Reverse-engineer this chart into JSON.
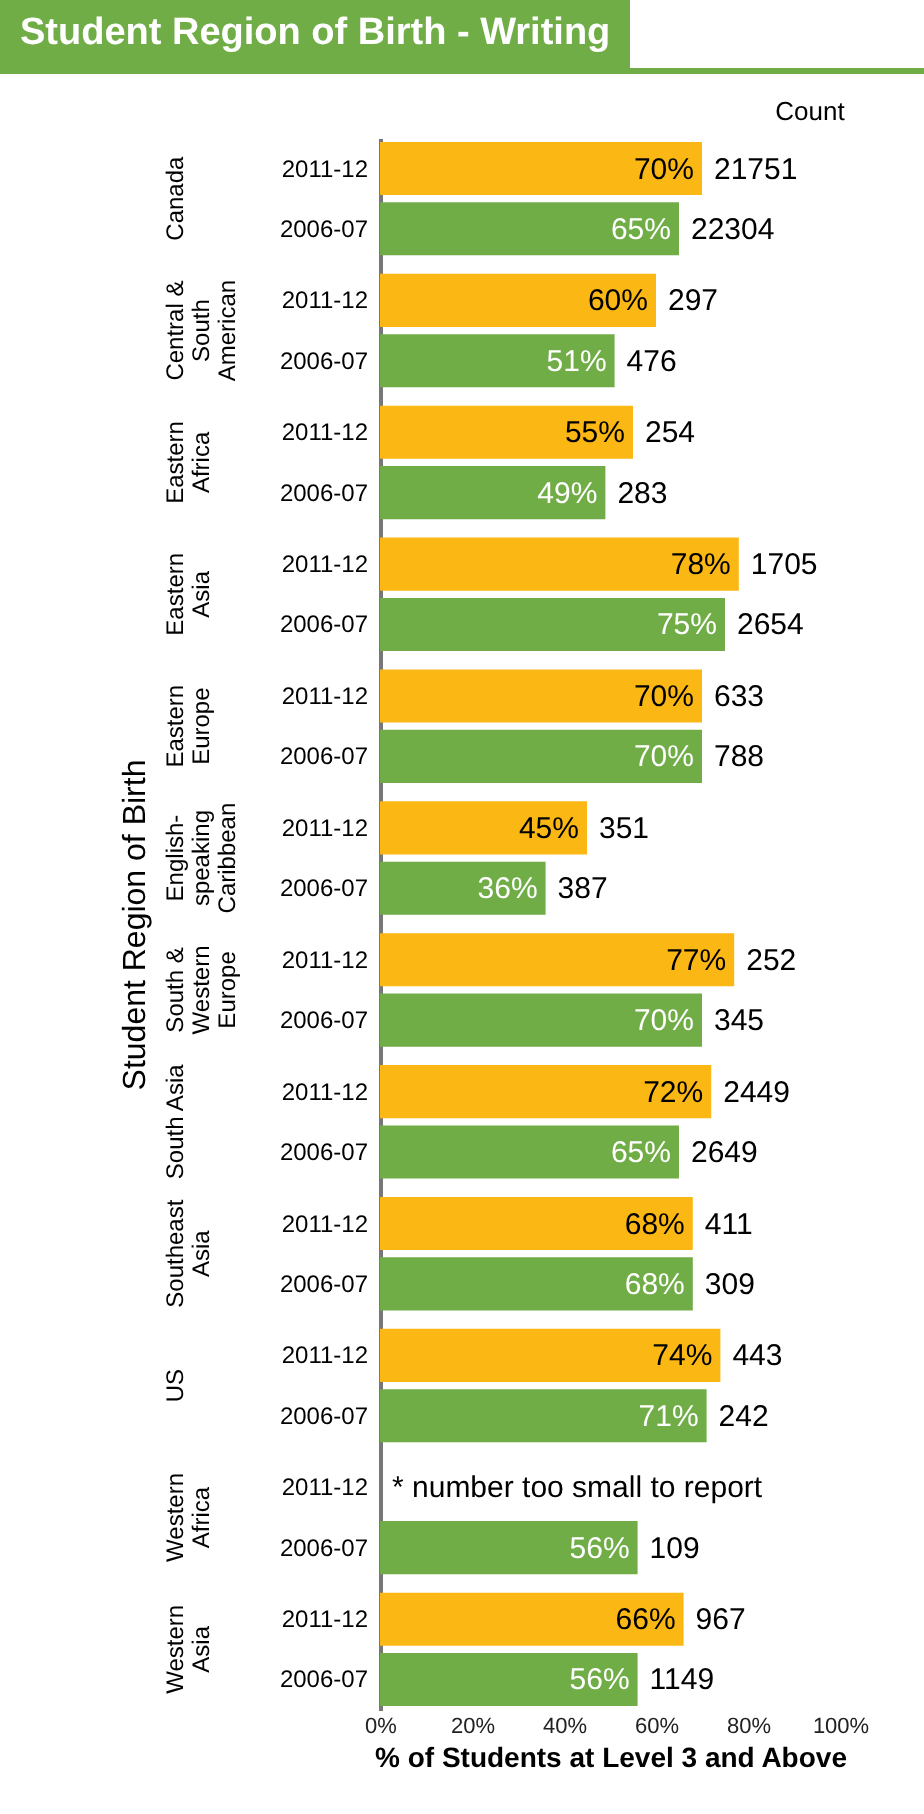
{
  "chart_data": {
    "type": "bar",
    "orientation": "horizontal",
    "title": "Student Region of Birth - Writing",
    "xlabel": "% of Students at Level 3 and Above",
    "ylabel": "Student Region of Birth",
    "categories": [
      "Canada",
      "Central & South American",
      "Eastern Africa",
      "Eastern Asia",
      "Eastern Europe",
      "English-speaking Caribbean",
      "South & Western Europe",
      "South Asia",
      "Southeast Asia",
      "US",
      "Western Africa",
      "Western Asia"
    ],
    "series": [
      {
        "name": "2011-12",
        "color": "#fbb714",
        "values": [
          70,
          60,
          55,
          78,
          70,
          45,
          77,
          72,
          68,
          74,
          null,
          66
        ],
        "value_labels": [
          "70%",
          "60%",
          "55%",
          "78%",
          "70%",
          "45%",
          "77%",
          "72%",
          "68%",
          "74%",
          null,
          "66%"
        ]
      },
      {
        "name": "2006-07",
        "color": "#70ad47",
        "values": [
          65,
          51,
          49,
          75,
          70,
          36,
          70,
          65,
          68,
          71,
          56,
          56
        ],
        "value_labels": [
          "65%",
          "51%",
          "49%",
          "75%",
          "70%",
          "36%",
          "70%",
          "65%",
          "68%",
          "71%",
          "56%",
          "56%"
        ]
      }
    ],
    "xlim": [
      0,
      100
    ],
    "xticks": [
      {
        "value": 0,
        "label": "0%"
      },
      {
        "value": 20,
        "label": "20%"
      },
      {
        "value": 40,
        "label": "40%"
      },
      {
        "value": 60,
        "label": "60%"
      },
      {
        "value": 80,
        "label": "80%"
      },
      {
        "value": 100,
        "label": "100%"
      }
    ],
    "annotations": [
      "Count",
      {
        "text": "21751",
        "x": 70,
        "y": "Canada"
      },
      {
        "text": "22304",
        "x": 65,
        "y": "Canada"
      },
      {
        "text": "297",
        "x": 60,
        "y": "Central & South American"
      },
      {
        "text": "476",
        "x": 51,
        "y": "Central & South American"
      },
      {
        "text": "254",
        "x": 55,
        "y": "Eastern Africa"
      },
      {
        "text": "283",
        "x": 49,
        "y": "Eastern Africa"
      },
      {
        "text": "1705",
        "x": 78,
        "y": "Eastern Asia"
      },
      {
        "text": "2654",
        "x": 75,
        "y": "Eastern Asia"
      },
      {
        "text": "633",
        "x": 70,
        "y": "Eastern Europe"
      },
      {
        "text": "788",
        "x": 70,
        "y": "Eastern Europe"
      },
      {
        "text": "351",
        "x": 45,
        "y": "English-speaking Caribbean"
      },
      {
        "text": "387",
        "x": 36,
        "y": "English-speaking Caribbean"
      },
      {
        "text": "252",
        "x": 77,
        "y": "South & Western Europe"
      },
      {
        "text": "345",
        "x": 70,
        "y": "South & Western Europe"
      },
      {
        "text": "2449",
        "x": 72,
        "y": "South Asia"
      },
      {
        "text": "2649",
        "x": 65,
        "y": "South Asia"
      },
      {
        "text": "411",
        "x": 68,
        "y": "Southeast Asia"
      },
      {
        "text": "309",
        "x": 68,
        "y": "Southeast Asia"
      },
      {
        "text": "443",
        "x": 74,
        "y": "US"
      },
      {
        "text": "242",
        "x": 71,
        "y": "US"
      },
      {
        "text": "* number  too small to report",
        "x": 0,
        "y": "Western Africa"
      },
      {
        "text": "109",
        "x": 56,
        "y": "Western Africa"
      },
      {
        "text": "967",
        "x": 66,
        "y": "Western Asia"
      },
      {
        "text": "1149",
        "x": 56,
        "y": "Western Asia"
      }
    ],
    "grid": false
  }
}
